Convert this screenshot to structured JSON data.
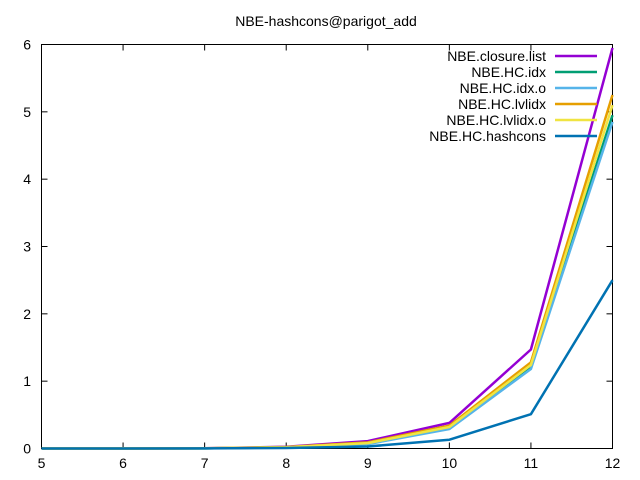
{
  "chart_data": {
    "type": "line",
    "title": "NBE-hashcons@parigot_add",
    "xlabel": "",
    "ylabel": "",
    "xlim": [
      5,
      12
    ],
    "ylim": [
      0,
      6
    ],
    "xticks": [
      "5",
      "6",
      "7",
      "8",
      "9",
      "10",
      "11",
      "12"
    ],
    "yticks": [
      "0",
      "1",
      "2",
      "3",
      "4",
      "5",
      "6"
    ],
    "grid": false,
    "legend_position": "top-right",
    "x": [
      5,
      6,
      7,
      8,
      9,
      10,
      11,
      12
    ],
    "series": [
      {
        "name": "NBE.closure.list",
        "color": "#9400d3",
        "values": [
          0,
          0,
          0.003,
          0.025,
          0.11,
          0.38,
          1.47,
          5.95
        ]
      },
      {
        "name": "NBE.HC.idx",
        "color": "#009e73",
        "values": [
          0,
          0,
          0.002,
          0.018,
          0.07,
          0.3,
          1.2,
          4.95
        ]
      },
      {
        "name": "NBE.HC.idx.o",
        "color": "#56b4e9",
        "values": [
          0,
          0,
          0.002,
          0.017,
          0.065,
          0.29,
          1.18,
          4.85
        ]
      },
      {
        "name": "NBE.HC.lvlidx",
        "color": "#e69f00",
        "values": [
          0,
          0,
          0.003,
          0.022,
          0.09,
          0.34,
          1.28,
          5.25
        ]
      },
      {
        "name": "NBE.HC.lvlidx.o",
        "color": "#f0e442",
        "values": [
          0,
          0,
          0.002,
          0.02,
          0.08,
          0.32,
          1.24,
          5.1
        ]
      },
      {
        "name": "NBE.HC.hashcons",
        "color": "#0072b2",
        "values": [
          0,
          0,
          0.001,
          0.008,
          0.03,
          0.13,
          0.51,
          2.5
        ]
      }
    ]
  }
}
